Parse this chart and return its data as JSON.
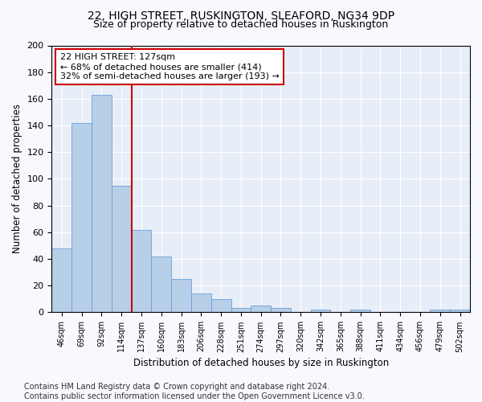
{
  "title1": "22, HIGH STREET, RUSKINGTON, SLEAFORD, NG34 9DP",
  "title2": "Size of property relative to detached houses in Ruskington",
  "xlabel": "Distribution of detached houses by size in Ruskington",
  "ylabel": "Number of detached properties",
  "categories": [
    "46sqm",
    "69sqm",
    "92sqm",
    "114sqm",
    "137sqm",
    "160sqm",
    "183sqm",
    "206sqm",
    "228sqm",
    "251sqm",
    "274sqm",
    "297sqm",
    "320sqm",
    "342sqm",
    "365sqm",
    "388sqm",
    "411sqm",
    "434sqm",
    "456sqm",
    "479sqm",
    "502sqm"
  ],
  "values": [
    48,
    142,
    163,
    95,
    62,
    42,
    25,
    14,
    10,
    3,
    5,
    3,
    0,
    2,
    0,
    2,
    0,
    0,
    0,
    2,
    2
  ],
  "bar_color": "#b8cfe8",
  "bar_edge_color": "#6a9fd8",
  "vline_x": 3.5,
  "vline_color": "#cc0000",
  "annotation_line1": "22 HIGH STREET: 127sqm",
  "annotation_line2": "← 68% of detached houses are smaller (414)",
  "annotation_line3": "32% of semi-detached houses are larger (193) →",
  "annotation_box_color": "#ffffff",
  "annotation_box_edge_color": "#cc0000",
  "ylim": [
    0,
    200
  ],
  "yticks": [
    0,
    20,
    40,
    60,
    80,
    100,
    120,
    140,
    160,
    180,
    200
  ],
  "footer1": "Contains HM Land Registry data © Crown copyright and database right 2024.",
  "footer2": "Contains public sector information licensed under the Open Government Licence v3.0.",
  "fig_bg_color": "#f8f8ff",
  "ax_bg_color": "#e8eef8",
  "grid_color": "#ffffff",
  "title1_fontsize": 10,
  "title2_fontsize": 9,
  "xlabel_fontsize": 8.5,
  "ylabel_fontsize": 8.5,
  "tick_fontsize": 7,
  "annotation_fontsize": 8,
  "footer_fontsize": 7
}
